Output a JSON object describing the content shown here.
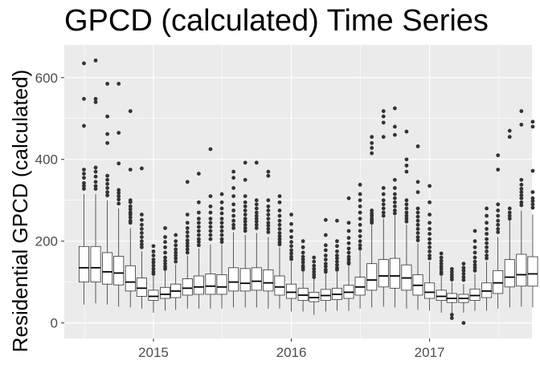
{
  "chart_data": {
    "type": "boxplot",
    "title": "GPCD (calculated) Time Series",
    "xlabel": "",
    "ylabel": "Residential GPCD (calculated)",
    "x_axis": {
      "type": "date",
      "range": [
        "2014-05-10",
        "2017-09-29"
      ],
      "ticks": [
        {
          "date": "2015-01-01",
          "label": "2015"
        },
        {
          "date": "2016-01-01",
          "label": "2016"
        },
        {
          "date": "2017-01-01",
          "label": "2017"
        }
      ]
    },
    "y_axis": {
      "range": [
        -38,
        680
      ],
      "ticks": [
        0,
        200,
        400,
        600
      ],
      "tick_labels": [
        "0",
        "200",
        "400",
        "600"
      ]
    },
    "grid": true,
    "panel_background": "#ebebeb",
    "box_fill": "#ffffff",
    "box_stroke": "#333333",
    "outlier_color": "#333333",
    "boxes": [
      {
        "month": "2014-07",
        "whisker_low": 45,
        "q1": 100,
        "median": 135,
        "q3": 187,
        "whisker_high": 315,
        "outliers": [
          635,
          548,
          482,
          375,
          365,
          355,
          342,
          335,
          328
        ]
      },
      {
        "month": "2014-08",
        "whisker_low": 48,
        "q1": 100,
        "median": 135,
        "q3": 187,
        "whisker_high": 315,
        "outliers": [
          642,
          548,
          540,
          380,
          370,
          358,
          345,
          335,
          328
        ]
      },
      {
        "month": "2014-09",
        "whisker_low": 45,
        "q1": 95,
        "median": 125,
        "q3": 172,
        "whisker_high": 300,
        "outliers": [
          585,
          505,
          462,
          440,
          360,
          350,
          340,
          330,
          320,
          312
        ]
      },
      {
        "month": "2014-10",
        "whisker_low": 40,
        "q1": 93,
        "median": 122,
        "q3": 163,
        "whisker_high": 280,
        "outliers": [
          585,
          465,
          390,
          325,
          318,
          310,
          302,
          292
        ]
      },
      {
        "month": "2014-11",
        "whisker_low": 38,
        "q1": 78,
        "median": 100,
        "q3": 140,
        "whisker_high": 232,
        "outliers": [
          518,
          375,
          300,
          295,
          285,
          278,
          270,
          265,
          258,
          250,
          245
        ]
      },
      {
        "month": "2014-12",
        "whisker_low": 35,
        "q1": 65,
        "median": 85,
        "q3": 110,
        "whisker_high": 175,
        "outliers": [
          378,
          265,
          252,
          240,
          230,
          220,
          210,
          200,
          192,
          185
        ]
      },
      {
        "month": "2015-01",
        "whisker_low": 25,
        "q1": 55,
        "median": 65,
        "q3": 80,
        "whisker_high": 115,
        "outliers": [
          188,
          175,
          165,
          155,
          148,
          140,
          132,
          125,
          120
        ]
      },
      {
        "month": "2015-02",
        "whisker_low": 30,
        "q1": 60,
        "median": 70,
        "q3": 87,
        "whisker_high": 128,
        "outliers": [
          232,
          210,
          198,
          185,
          172,
          160,
          152,
          145,
          138,
          132
        ]
      },
      {
        "month": "2015-03",
        "whisker_low": 32,
        "q1": 62,
        "median": 78,
        "q3": 95,
        "whisker_high": 143,
        "outliers": [
          215,
          200,
          190,
          180,
          172,
          165,
          158,
          150
        ]
      },
      {
        "month": "2015-04",
        "whisker_low": 35,
        "q1": 68,
        "median": 85,
        "q3": 108,
        "whisker_high": 165,
        "outliers": [
          345,
          265,
          245,
          232,
          222,
          212,
          202,
          195,
          188,
          180,
          172
        ]
      },
      {
        "month": "2015-05",
        "whisker_low": 35,
        "q1": 70,
        "median": 88,
        "q3": 115,
        "whisker_high": 182,
        "outliers": [
          365,
          295,
          270,
          255,
          245,
          235,
          225,
          215,
          205,
          198,
          190
        ]
      },
      {
        "month": "2015-06",
        "whisker_low": 35,
        "q1": 70,
        "median": 90,
        "q3": 120,
        "whisker_high": 192,
        "outliers": [
          425,
          310,
          285,
          270,
          255,
          245,
          235,
          225,
          215,
          205
        ]
      },
      {
        "month": "2015-07",
        "whisker_low": 35,
        "q1": 70,
        "median": 88,
        "q3": 118,
        "whisker_high": 192,
        "outliers": [
          315,
          295,
          280,
          268,
          255,
          245,
          235,
          225,
          215,
          205,
          198
        ]
      },
      {
        "month": "2015-08",
        "whisker_low": 38,
        "q1": 78,
        "median": 100,
        "q3": 135,
        "whisker_high": 222,
        "outliers": [
          370,
          355,
          330,
          310,
          290,
          275,
          262,
          250,
          240,
          232
        ]
      },
      {
        "month": "2015-09",
        "whisker_low": 38,
        "q1": 78,
        "median": 97,
        "q3": 133,
        "whisker_high": 215,
        "outliers": [
          392,
          350,
          310,
          295,
          285,
          275,
          265,
          255,
          248,
          240,
          232,
          225
        ]
      },
      {
        "month": "2015-10",
        "whisker_low": 38,
        "q1": 80,
        "median": 102,
        "q3": 135,
        "whisker_high": 220,
        "outliers": [
          392,
          300,
          290,
          280,
          270,
          262,
          255,
          248,
          240,
          232
        ]
      },
      {
        "month": "2015-11",
        "whisker_low": 35,
        "q1": 78,
        "median": 98,
        "q3": 130,
        "whisker_high": 210,
        "outliers": [
          370,
          360,
          300,
          285,
          275,
          265,
          255,
          245,
          238,
          230,
          222
        ]
      },
      {
        "month": "2015-12",
        "whisker_low": 35,
        "q1": 68,
        "median": 88,
        "q3": 115,
        "whisker_high": 185,
        "outliers": [
          310,
          295,
          275,
          262,
          250,
          240,
          230,
          220,
          212,
          205,
          198,
          192
        ]
      },
      {
        "month": "2016-01",
        "whisker_low": 28,
        "q1": 60,
        "median": 75,
        "q3": 95,
        "whisker_high": 150,
        "outliers": [
          265,
          242,
          225,
          210,
          198,
          188,
          178,
          170,
          162,
          156
        ]
      },
      {
        "month": "2016-02",
        "whisker_low": 28,
        "q1": 55,
        "median": 68,
        "q3": 85,
        "whisker_high": 125,
        "outliers": [
          200,
          185,
          172,
          162,
          155,
          148,
          140,
          135,
          130
        ]
      },
      {
        "month": "2016-03",
        "whisker_low": 20,
        "q1": 52,
        "median": 62,
        "q3": 75,
        "whisker_high": 108,
        "outliers": [
          160,
          150,
          140,
          132,
          125,
          118,
          112
        ]
      },
      {
        "month": "2016-04",
        "whisker_low": 28,
        "q1": 55,
        "median": 67,
        "q3": 82,
        "whisker_high": 120,
        "outliers": [
          252,
          215,
          190,
          178,
          165,
          155,
          145,
          138,
          130,
          125
        ]
      },
      {
        "month": "2016-05",
        "whisker_low": 30,
        "q1": 57,
        "median": 70,
        "q3": 85,
        "whisker_high": 125,
        "outliers": [
          250,
          200,
          188,
          175,
          165,
          158,
          150,
          142,
          135,
          130
        ]
      },
      {
        "month": "2016-06",
        "whisker_low": 30,
        "q1": 60,
        "median": 75,
        "q3": 92,
        "whisker_high": 140,
        "outliers": [
          305,
          245,
          225,
          208,
          195,
          182,
          172,
          162,
          155,
          148,
          145
        ]
      },
      {
        "month": "2016-07",
        "whisker_low": 35,
        "q1": 68,
        "median": 88,
        "q3": 112,
        "whisker_high": 178,
        "outliers": [
          338,
          315,
          300,
          285,
          270,
          255,
          240,
          225,
          212,
          200,
          190,
          182
        ]
      },
      {
        "month": "2016-08",
        "whisker_low": 38,
        "q1": 80,
        "median": 105,
        "q3": 145,
        "whisker_high": 240,
        "outliers": [
          455,
          440,
          428,
          415,
          275,
          268,
          262,
          255,
          250,
          245
        ]
      },
      {
        "month": "2016-09",
        "whisker_low": 40,
        "q1": 88,
        "median": 115,
        "q3": 155,
        "whisker_high": 255,
        "outliers": [
          518,
          505,
          490,
          455,
          330,
          315,
          300,
          290,
          280,
          270,
          262
        ]
      },
      {
        "month": "2016-10",
        "whisker_low": 38,
        "q1": 85,
        "median": 115,
        "q3": 158,
        "whisker_high": 262,
        "outliers": [
          525,
          480,
          460,
          350,
          330,
          315,
          305,
          295,
          285,
          275,
          268
        ]
      },
      {
        "month": "2016-11",
        "whisker_low": 35,
        "q1": 80,
        "median": 110,
        "q3": 142,
        "whisker_high": 240,
        "outliers": [
          468,
          400,
          385,
          370,
          300,
          290,
          280,
          270,
          262,
          255,
          248
        ]
      },
      {
        "month": "2016-12",
        "whisker_low": 32,
        "q1": 68,
        "median": 92,
        "q3": 118,
        "whisker_high": 195,
        "outliers": [
          432,
          345,
          320,
          280,
          270,
          260,
          250,
          240,
          230,
          220,
          210,
          202
        ]
      },
      {
        "month": "2017-01",
        "whisker_low": 30,
        "q1": 60,
        "median": 75,
        "q3": 98,
        "whisker_high": 150,
        "outliers": [
          335,
          295,
          265,
          245,
          230,
          218,
          205,
          195,
          185,
          175,
          165,
          158
        ]
      },
      {
        "month": "2017-02",
        "whisker_low": 25,
        "q1": 55,
        "median": 65,
        "q3": 80,
        "whisker_high": 115,
        "outliers": [
          170,
          160,
          152,
          145,
          138,
          132,
          125,
          120
        ]
      },
      {
        "month": "2017-03",
        "whisker_low": 22,
        "q1": 50,
        "median": 60,
        "q3": 72,
        "whisker_high": 100,
        "outliers": [
          132,
          125,
          118,
          112,
          106,
          20,
          12
        ]
      },
      {
        "month": "2017-04",
        "whisker_low": 25,
        "q1": 50,
        "median": 60,
        "q3": 70,
        "whisker_high": 95,
        "outliers": [
          145,
          135,
          128,
          120,
          112,
          105,
          0
        ]
      },
      {
        "month": "2017-05",
        "whisker_low": 30,
        "q1": 55,
        "median": 67,
        "q3": 83,
        "whisker_high": 120,
        "outliers": [
          225,
          200,
          185,
          172,
          160,
          150,
          142,
          135,
          128
        ]
      },
      {
        "month": "2017-06",
        "whisker_low": 30,
        "q1": 62,
        "median": 78,
        "q3": 98,
        "whisker_high": 150,
        "outliers": [
          280,
          262,
          245,
          230,
          218,
          205,
          195,
          185,
          175,
          165,
          158
        ]
      },
      {
        "month": "2017-07",
        "whisker_low": 35,
        "q1": 72,
        "median": 98,
        "q3": 128,
        "whisker_high": 210,
        "outliers": [
          410,
          375,
          290,
          275,
          262,
          250,
          240,
          230,
          222
        ]
      },
      {
        "month": "2017-08",
        "whisker_low": 38,
        "q1": 88,
        "median": 112,
        "q3": 155,
        "whisker_high": 250,
        "outliers": [
          470,
          455,
          280,
          270,
          262,
          255
        ]
      },
      {
        "month": "2017-09",
        "whisker_low": 40,
        "q1": 90,
        "median": 118,
        "q3": 168,
        "whisker_high": 275,
        "outliers": [
          518,
          485,
          350,
          338,
          328,
          320,
          312,
          305,
          295,
          288
        ]
      },
      {
        "month": "2017-10",
        "whisker_low": 38,
        "q1": 90,
        "median": 120,
        "q3": 162,
        "whisker_high": 265,
        "outliers": [
          492,
          480,
          372,
          320,
          305,
          298,
          290,
          282
        ]
      }
    ]
  }
}
